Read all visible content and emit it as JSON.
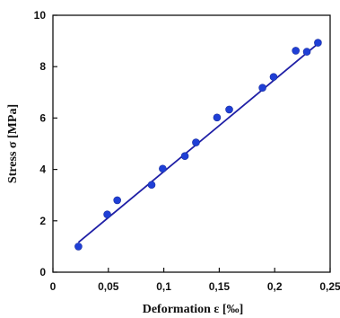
{
  "chart_data": {
    "type": "scatter",
    "title": "",
    "xlabel": "Deformation ε [‰]",
    "ylabel": "Stress σ [MPa]",
    "xlim": [
      0,
      0.25
    ],
    "ylim": [
      0,
      10
    ],
    "x_ticks": [
      0,
      0.05,
      0.1,
      0.15,
      0.2,
      0.25
    ],
    "x_tick_labels": [
      "0",
      "0,05",
      "0,1",
      "0,15",
      "0,2",
      "0,25"
    ],
    "y_ticks": [
      0,
      2,
      4,
      6,
      8,
      10
    ],
    "y_tick_labels": [
      "0",
      "2",
      "4",
      "6",
      "8",
      "10"
    ],
    "grid": false,
    "legend": "none",
    "series": [
      {
        "points": [
          [
            0.023,
            1.0
          ],
          [
            0.049,
            2.25
          ],
          [
            0.058,
            2.8
          ],
          [
            0.089,
            3.4
          ],
          [
            0.099,
            4.03
          ],
          [
            0.119,
            4.52
          ],
          [
            0.129,
            5.05
          ],
          [
            0.148,
            6.02
          ],
          [
            0.159,
            6.33
          ],
          [
            0.189,
            7.18
          ],
          [
            0.199,
            7.6
          ],
          [
            0.219,
            8.62
          ],
          [
            0.229,
            8.58
          ],
          [
            0.239,
            8.93
          ]
        ],
        "color": "#1f3fd6"
      }
    ],
    "trendline": {
      "type": "linear",
      "x": [
        0.023,
        0.242
      ],
      "y": [
        1.16,
        9.0
      ],
      "color": "#1f1fa6"
    }
  }
}
